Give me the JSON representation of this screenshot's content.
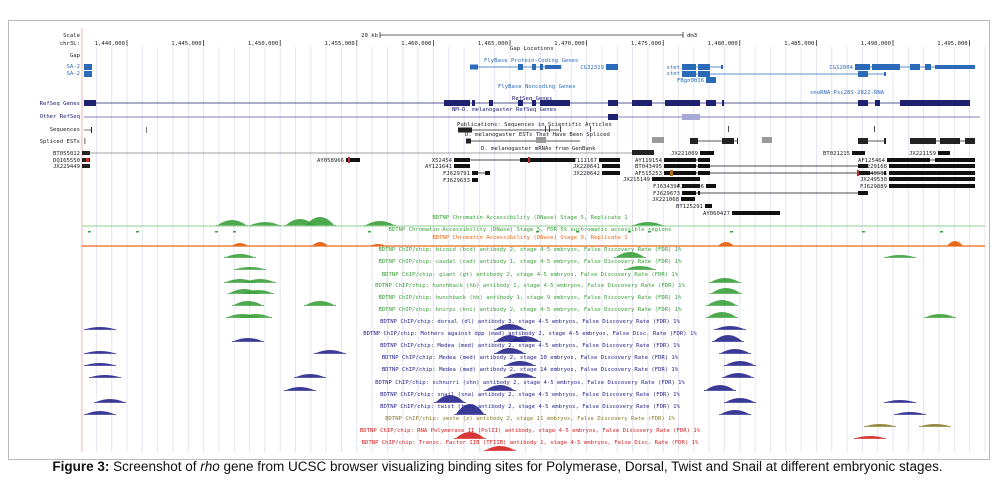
{
  "browser": {
    "scale_label": "Scale",
    "scale_bar": "20 kb",
    "assembly": "dm3",
    "chrom_label": "chr3L:",
    "ticks": [
      "1,440,000",
      "1,445,000",
      "1,450,000",
      "1,455,000",
      "1,460,000",
      "1,465,000",
      "1,470,000",
      "1,475,000",
      "1,480,000",
      "1,485,000",
      "1,490,000",
      "1,495,000"
    ],
    "tick_positions_bp": [
      1440000,
      1445000,
      1450000,
      1455000,
      1460000,
      1465000,
      1470000,
      1475000,
      1480000,
      1485000,
      1490000,
      1495000
    ],
    "tracks_left": {
      "gap": "Gap",
      "sa2_a": "SA-2",
      "sa2_b": "SA-2",
      "refseq": "RefSeq Genes",
      "other_refseq": "Other RefSeq",
      "sequences": "Sequences",
      "spliced_ests": "Spliced ESTs"
    },
    "center_labels": {
      "gap_locations": "Gap Locations",
      "flybase_coding": "FlyBase Protein-Coding Genes",
      "flybase_noncoding": "FlyBase Noncoding Genes",
      "refseq_genes": "RefSeq Genes",
      "nm_refseq": "NM-D. melanogaster RefSeq Genes",
      "publications": "Publications: Sequences in Scientific Articles",
      "spliced_est_title": "D. melanogaster ESTs That Have Been Spliced",
      "mrna_title": "D. melanogaster mRNAs from GenBank"
    },
    "gene_labels": {
      "cg32319": "CG32319",
      "stet_a": "stet",
      "stet_b": "stet",
      "fbgn": "FBgn0016",
      "cg12004": "CG12004",
      "snorna": "snoRNA:Psi28S-2822-RNA"
    },
    "mrna_left": [
      "BT055012",
      "DQ165550",
      "JX229449"
    ],
    "mrna_labels": [
      "AY058966",
      "X52454",
      "AY121641",
      "FJ629791",
      "FJ629633",
      "BT111167",
      "JX220641",
      "JX220642",
      "JX221069",
      "AY119154",
      "BT043495",
      "AF515253",
      "JX215149",
      "FJ634394",
      "FJ629673",
      "FJ631306",
      "JX221068",
      "BT125291",
      "AY060427",
      "BT021215",
      "JX221159",
      "AF125464",
      "JX229168",
      "JX249536",
      "JX249538",
      "FJ629889"
    ],
    "signal_tracks": [
      {
        "label": "BDTNP Chromatin Accessibility (DNase) Stage 5, Replicate 1",
        "color": "#3aa03a"
      },
      {
        "label": "BDTNP Chromatin Accessibility (DNase) Stage 5, FDR 5% euchromatic accessible regions",
        "color": "#3aa03a"
      },
      {
        "label": "BDTNP Chromatin Accessibility (DNase) Stage 9, Replicate 1",
        "color": "#e86a1a"
      },
      {
        "label": "BDTNP ChIP/chip: bicoid (bcd) antibody 2, stage 4-5 embryos, False Discovery Rate (FDR) 1%",
        "color": "#3aa03a"
      },
      {
        "label": "BDTNP ChIP/chip: caudal (cad) antibody 1, stage 4-5 embryos, False Discovery Rate (FDR) 1%",
        "color": "#3aa03a"
      },
      {
        "label": "BDTNP ChIP/chip: giant (gt) antibody 2, stage 4-5 embryos, False Discovery Rate (FDR) 1%",
        "color": "#3aa03a"
      },
      {
        "label": "BDTNP ChIP/chip: hunchback (hb) antibody 1, stage 4-5 embryos, False Discovery Rate (FDR) 1%",
        "color": "#3aa03a"
      },
      {
        "label": "BDTNP ChIP/chip: hunchback (hb) antibody 1, stage 9 embryos, False Discovery Rate (FDR) 1%",
        "color": "#3aa03a"
      },
      {
        "label": "BDTNP ChIP/chip: knirps (kni) antibody 2, stage 4-5 embryos, False Discovery Rate (FDR) 1%",
        "color": "#3aa03a"
      },
      {
        "label": "BDTNP ChIP/chip: dorsal (dl) antibody 3, stage 4-5 embryos, False Discovery Rate (FDR) 1%",
        "color": "#26268c"
      },
      {
        "label": "BDTNP ChIP/chip: Mothers against dpp (mad) antibody 2, stage 4-5 embryos, False Disc. Rate (FDR) 1%",
        "color": "#26268c"
      },
      {
        "label": "BDTNP ChIP/chip: Medea (med) antibody 2, stage 4-5 embryos, False Discovery Rate (FDR) 1%",
        "color": "#26268c"
      },
      {
        "label": "BDTNP ChIP/chip: Medea (med) antibody 2, stage 10 embryos, False Discovery Rate (FDR) 1%",
        "color": "#26268c"
      },
      {
        "label": "BDTNP ChIP/chip: Medea (med) antibody 2, stage 14 embryos, False Discovery Rate (FDR) 1%",
        "color": "#26268c"
      },
      {
        "label": "BDTNP ChIP/chip: schnurri (shn) antibody 2, stage 4-5 embryos, False Discovery Rate (FDR) 1%",
        "color": "#26268c"
      },
      {
        "label": "BDTNP ChIP/chip: snail (sna) antibody 2, stage 4-5 embryos, False Discovery Rate (FDR) 1%",
        "color": "#26268c"
      },
      {
        "label": "BDTNP ChIP/chip: twist (twi) antibody 2, stage 4-5 embryos, False Discovery Rate (FDR) 1%",
        "color": "#26268c"
      },
      {
        "label": "BDTNP ChIP/chip: zeste (z) antibody 2, stage 11 embryos, False Discovery Rate (FDR) 1%",
        "color": "#8a7a2a"
      },
      {
        "label": "BDTNP ChIP/chip: RNA Polymerase II (PolII) antibody, stage 4-5 embryos, False Discovery Rate (FDR) 1%",
        "color": "#d42020"
      },
      {
        "label": "BDTNP ChIP/chip: Transc. Factor IIB (TFIIB) antibody 1, stage 4-5 embryos, False Disc. Rate (FDR) 1%",
        "color": "#d42020"
      }
    ],
    "colors": {
      "flybase": "#2a6ab8",
      "refseq": "#1e2070",
      "grid": "#e4e4f2",
      "highlight": "#f4b0b0"
    }
  },
  "caption": {
    "label": "Figure 3:",
    "pre": " Screenshot of ",
    "gene": "rho",
    "post": " gene from UCSC browser visualizing binding sites for Polymerase, Dorsal, Twist and Snail at different embryonic stages."
  }
}
